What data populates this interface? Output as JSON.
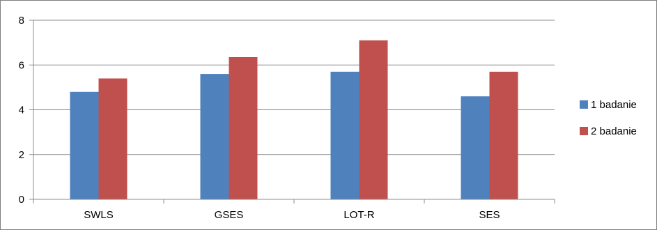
{
  "chart_data": {
    "type": "bar",
    "title": "",
    "xlabel": "",
    "ylabel": "",
    "categories": [
      "SWLS",
      "GSES",
      "LOT-R",
      "SES"
    ],
    "series": [
      {
        "name": "1 badanie",
        "values": [
          4.8,
          5.6,
          5.7,
          4.6
        ],
        "color": "#4f81bd"
      },
      {
        "name": "2 badanie",
        "values": [
          5.4,
          6.35,
          7.1,
          5.7
        ],
        "color": "#c0504d"
      }
    ],
    "ylim": [
      0,
      8
    ],
    "yticks": [
      0,
      2,
      4,
      6,
      8
    ],
    "ytick_labels": [
      "0",
      "2",
      "4",
      "6",
      "8"
    ],
    "grid": true,
    "legend_position": "right",
    "gridline_color": "#8c8c8c",
    "axis_color": "#8c8c8c"
  }
}
